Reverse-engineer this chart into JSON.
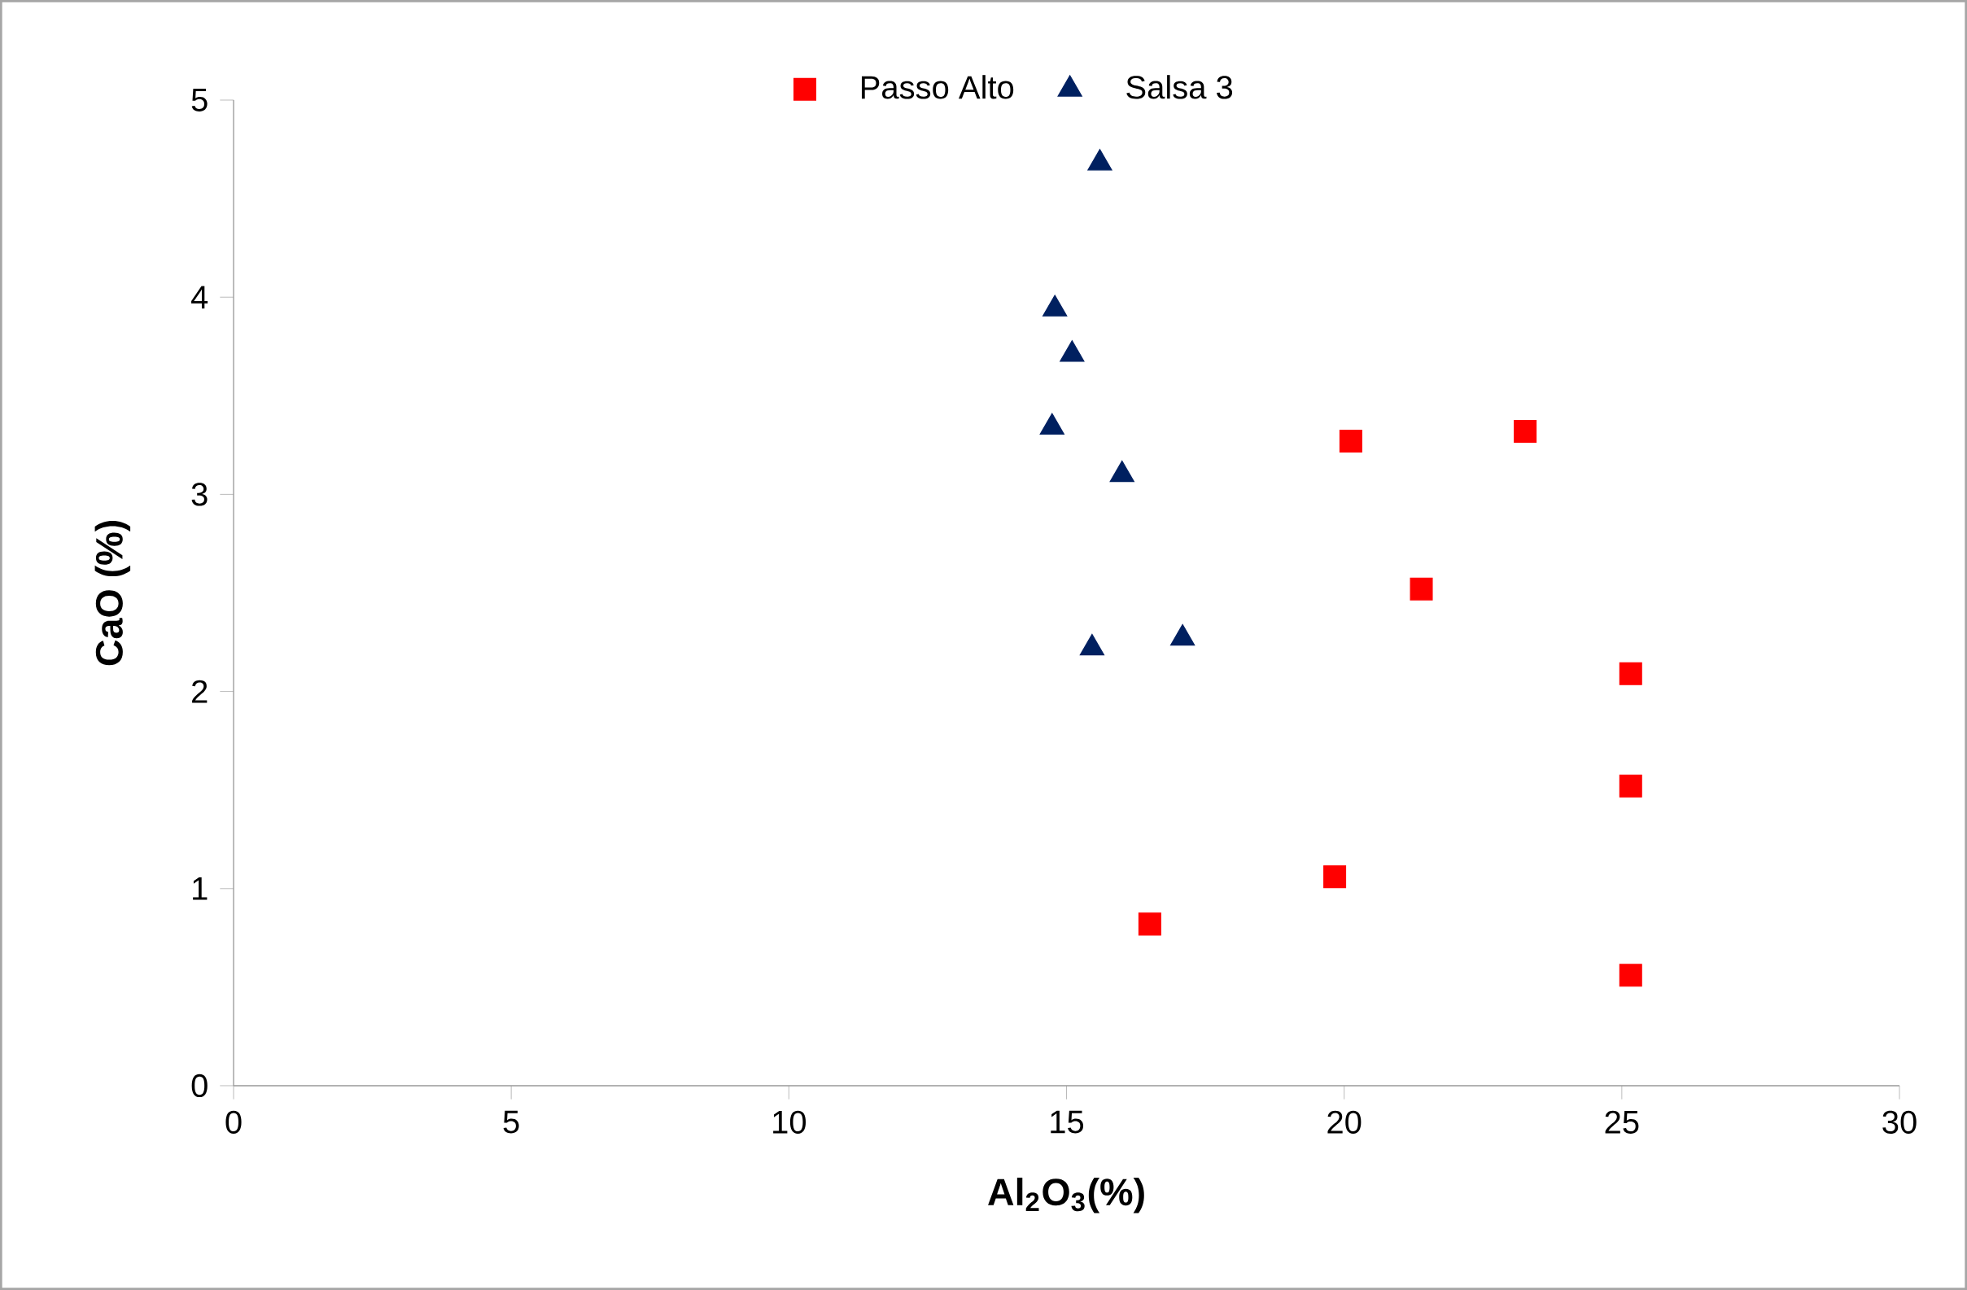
{
  "chart_data": {
    "type": "scatter",
    "xlabel": "Al$_{2}$O$_{3}$(%)",
    "ylabel": "CaO (%)",
    "xlim": [
      0,
      30
    ],
    "ylim": [
      0,
      5
    ],
    "xticks": [
      0,
      5,
      10,
      15,
      20,
      25,
      30
    ],
    "yticks": [
      0,
      1,
      2,
      3,
      4,
      5
    ],
    "grid": false,
    "legend": "top",
    "series": [
      {
        "name": "Passo Alto",
        "color": "#ff0000",
        "marker": "square",
        "x": [
          16.5,
          19.83,
          20.12,
          21.39,
          23.26,
          25.16,
          25.16,
          25.16
        ],
        "values": [
          0.82,
          1.06,
          3.27,
          2.52,
          3.32,
          2.09,
          1.52,
          0.56
        ]
      },
      {
        "name": "Salsa 3",
        "color": "#002060",
        "marker": "triangle",
        "x": [
          15.6,
          14.79,
          15.1,
          14.74,
          16.0,
          15.46,
          17.09
        ],
        "values": [
          4.68,
          3.94,
          3.71,
          3.34,
          3.1,
          2.22,
          2.27
        ]
      }
    ]
  }
}
